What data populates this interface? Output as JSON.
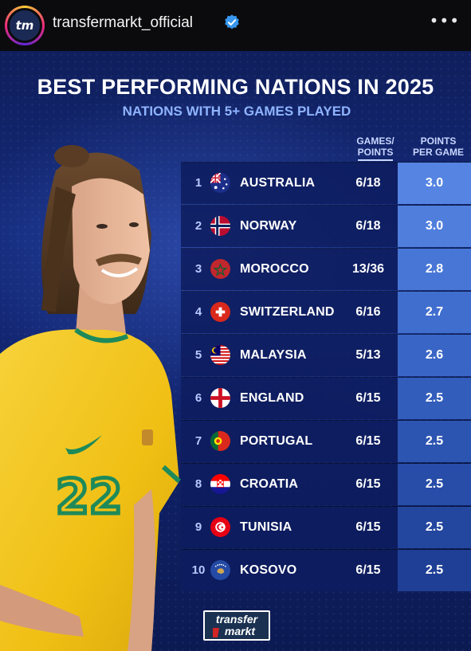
{
  "header": {
    "avatar_text": "tm",
    "username": "transfermarkt_official",
    "more_label": "•••"
  },
  "graphic": {
    "title": "BEST PERFORMING NATIONS IN 2025",
    "subtitle": "NATIONS WITH 5+ GAMES PLAYED",
    "columns": {
      "games_line1": "GAMES/",
      "games_line2": "POINTS",
      "ppg_line1": "POINTS",
      "ppg_line2": "PER GAME"
    },
    "rows": [
      {
        "rank": "1",
        "country": "AUSTRALIA",
        "games_points": "6/18",
        "ppg": "3.0",
        "flag": "australia-flag-icon"
      },
      {
        "rank": "2",
        "country": "NORWAY",
        "games_points": "6/18",
        "ppg": "3.0",
        "flag": "norway-flag-icon"
      },
      {
        "rank": "3",
        "country": "MOROCCO",
        "games_points": "13/36",
        "ppg": "2.8",
        "flag": "morocco-flag-icon"
      },
      {
        "rank": "4",
        "country": "SWITZERLAND",
        "games_points": "6/16",
        "ppg": "2.7",
        "flag": "switzerland-flag-icon"
      },
      {
        "rank": "5",
        "country": "MALAYSIA",
        "games_points": "5/13",
        "ppg": "2.6",
        "flag": "malaysia-flag-icon"
      },
      {
        "rank": "6",
        "country": "ENGLAND",
        "games_points": "6/15",
        "ppg": "2.5",
        "flag": "england-flag-icon"
      },
      {
        "rank": "7",
        "country": "PORTUGAL",
        "games_points": "6/15",
        "ppg": "2.5",
        "flag": "portugal-flag-icon"
      },
      {
        "rank": "8",
        "country": "CROATIA",
        "games_points": "6/15",
        "ppg": "2.5",
        "flag": "croatia-flag-icon"
      },
      {
        "rank": "9",
        "country": "TUNISIA",
        "games_points": "6/15",
        "ppg": "2.5",
        "flag": "tunisia-flag-icon"
      },
      {
        "rank": "10",
        "country": "KOSOVO",
        "games_points": "6/15",
        "ppg": "2.5",
        "flag": "kosovo-flag-icon"
      }
    ],
    "player_shirt_number": "22",
    "logo_line1": "transfer",
    "logo_line2": "markt"
  },
  "colors": {
    "accent": "#8fb4ff",
    "ppg_top": "#4f7fe0",
    "ppg_bottom": "#1f3c96",
    "row_bg": "#0e1c5f",
    "shirt": "#f2c318",
    "shirt_trim": "#1e8a5a"
  }
}
